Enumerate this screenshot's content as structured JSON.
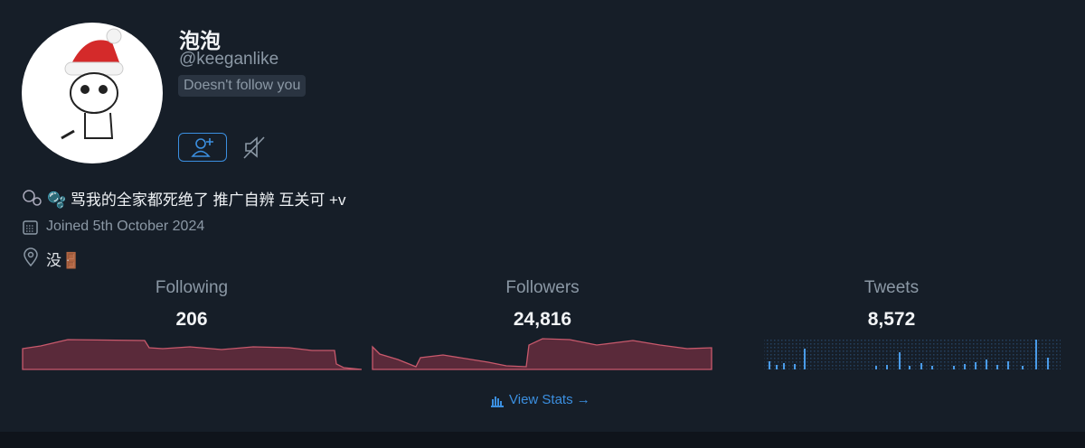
{
  "profile": {
    "name": "泡泡",
    "handle": "@keeganlike",
    "badge": "Doesn't follow you",
    "bio": "🫧 骂我的全家都死绝了 推广自辨 互关可 +v",
    "joined": "Joined 5th October 2024",
    "location": "没🚪"
  },
  "stats": [
    {
      "label": "Following",
      "value": "206"
    },
    {
      "label": "Followers",
      "value": "24,816"
    },
    {
      "label": "Tweets",
      "value": "8,572"
    }
  ],
  "link": "View Stats →"
}
